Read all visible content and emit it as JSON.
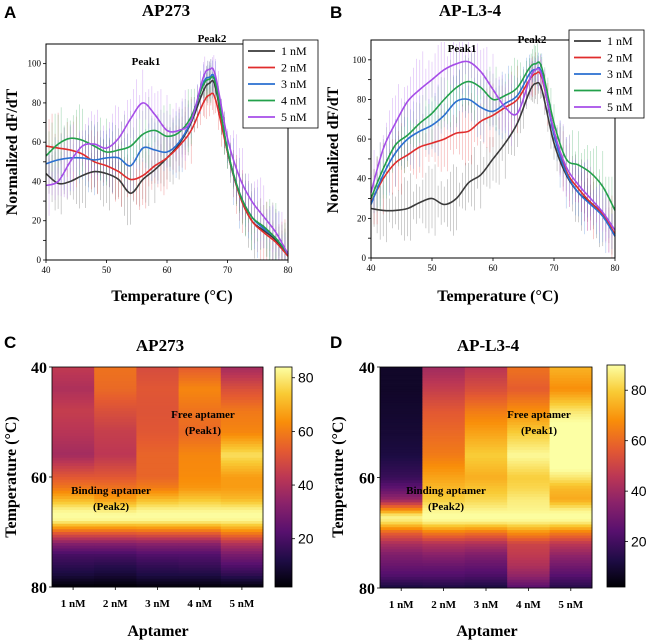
{
  "colors": {
    "1 nM": "#3a3a3a",
    "2 nM": "#e02c2c",
    "3 nM": "#2a6fd0",
    "4 nM": "#22a04a",
    "5 nM": "#a64de8"
  },
  "panels": {
    "A": {
      "letter": "A",
      "peak1": "Peak1",
      "peak2": "Peak2"
    },
    "B": {
      "letter": "B",
      "peak1": "Peak1",
      "peak2": "Peak2"
    },
    "C": {
      "letter": "C",
      "free_label": "Free aptamer",
      "free_sub": "(Peak1)",
      "binding_label": "Binding aptamer",
      "binding_sub": "(Peak2)"
    },
    "D": {
      "letter": "D",
      "free_label": "Free aptamer",
      "free_sub": "(Peak1)",
      "binding_label": "Binding aptamer",
      "binding_sub": "(Peak2)"
    }
  },
  "chart_data": [
    {
      "id": "A",
      "type": "line",
      "title": "AP273",
      "xlabel": "Temperature (°C)",
      "ylabel": "Normalized dF/dT",
      "xlim": [
        40,
        80
      ],
      "ylim": [
        0,
        110
      ],
      "xticks": [
        40,
        50,
        60,
        70,
        80
      ],
      "yticks": [
        0,
        10,
        20,
        30,
        40,
        50,
        60,
        70,
        80,
        90,
        100
      ],
      "error_bars": true,
      "legend_position": "top-right",
      "x": [
        40,
        42,
        44,
        46,
        48,
        50,
        52,
        54,
        56,
        58,
        60,
        62,
        64,
        66,
        67,
        68,
        70,
        72,
        74,
        76,
        78,
        80
      ],
      "series": [
        {
          "name": "1 nM",
          "values": [
            44,
            39,
            40,
            43,
            45,
            44,
            41,
            34,
            41,
            46,
            52,
            59,
            70,
            86,
            90,
            88,
            55,
            33,
            20,
            15,
            10,
            2
          ]
        },
        {
          "name": "2 nM",
          "values": [
            58,
            57,
            56,
            54,
            50,
            48,
            45,
            41,
            43,
            48,
            52,
            58,
            66,
            80,
            84,
            82,
            55,
            33,
            20,
            14,
            9,
            2
          ]
        },
        {
          "name": "3 nM",
          "values": [
            49,
            51,
            52,
            52,
            51,
            52,
            52,
            48,
            57,
            56,
            55,
            60,
            71,
            90,
            93,
            91,
            56,
            34,
            22,
            16,
            11,
            3
          ]
        },
        {
          "name": "4 nM",
          "values": [
            53,
            59,
            62,
            61,
            58,
            55,
            56,
            58,
            64,
            66,
            63,
            65,
            73,
            89,
            92,
            90,
            56,
            34,
            22,
            17,
            11,
            3
          ]
        },
        {
          "name": "5 nM",
          "values": [
            38,
            40,
            50,
            58,
            59,
            57,
            62,
            72,
            80,
            74,
            66,
            66,
            71,
            93,
            97,
            94,
            62,
            42,
            30,
            22,
            14,
            3
          ]
        }
      ]
    },
    {
      "id": "B",
      "type": "line",
      "title": "AP-L3-4",
      "xlabel": "Temperature (°C)",
      "ylabel": "Normalized dF/dT",
      "xlim": [
        40,
        80
      ],
      "ylim": [
        0,
        110
      ],
      "xticks": [
        40,
        50,
        60,
        70,
        80
      ],
      "yticks": [
        0,
        10,
        20,
        30,
        40,
        50,
        60,
        70,
        80,
        90,
        100
      ],
      "error_bars": true,
      "legend_position": "top-right",
      "x": [
        40,
        42,
        44,
        46,
        48,
        50,
        52,
        54,
        56,
        58,
        60,
        62,
        64,
        66,
        67,
        68,
        70,
        72,
        74,
        76,
        78,
        80
      ],
      "series": [
        {
          "name": "1 nM",
          "values": [
            25,
            24,
            24,
            25,
            28,
            30,
            27,
            30,
            38,
            42,
            50,
            58,
            68,
            84,
            88,
            85,
            58,
            42,
            33,
            28,
            22,
            11
          ]
        },
        {
          "name": "2 nM",
          "values": [
            28,
            40,
            48,
            52,
            56,
            58,
            60,
            63,
            64,
            69,
            72,
            76,
            80,
            90,
            93,
            91,
            64,
            44,
            35,
            28,
            22,
            12
          ]
        },
        {
          "name": "3 nM",
          "values": [
            27,
            42,
            53,
            60,
            64,
            67,
            72,
            79,
            80,
            76,
            74,
            78,
            82,
            93,
            95,
            93,
            62,
            43,
            33,
            27,
            21,
            11
          ]
        },
        {
          "name": "4 nM",
          "values": [
            30,
            45,
            57,
            62,
            68,
            73,
            80,
            86,
            89,
            86,
            80,
            82,
            86,
            96,
            98,
            96,
            68,
            50,
            47,
            43,
            36,
            24
          ]
        },
        {
          "name": "5 nM",
          "values": [
            33,
            55,
            68,
            79,
            85,
            90,
            95,
            98,
            99,
            94,
            85,
            76,
            73,
            90,
            95,
            92,
            64,
            46,
            37,
            30,
            23,
            14
          ]
        }
      ]
    },
    {
      "id": "C",
      "type": "heatmap",
      "title": "AP273",
      "xlabel": "Aptamer",
      "ylabel": "Temperature (°C)",
      "categories": [
        "1 nM",
        "2 nM",
        "3 nM",
        "4 nM",
        "5 nM"
      ],
      "ylim": [
        40,
        80
      ],
      "yticks": [
        40,
        60,
        80
      ],
      "colorbar_range": [
        2,
        84
      ],
      "colorbar_ticks": [
        20,
        40,
        60,
        80
      ],
      "temps": [
        40,
        44,
        48,
        52,
        56,
        60,
        62,
        64,
        66,
        67,
        68,
        70,
        72,
        74,
        76,
        78,
        80
      ],
      "values": [
        [
          44,
          40,
          45,
          42,
          38,
          52,
          59,
          70,
          82,
          84,
          82,
          55,
          33,
          20,
          15,
          10,
          2
        ],
        [
          58,
          56,
          50,
          45,
          43,
          52,
          58,
          66,
          80,
          84,
          82,
          55,
          33,
          20,
          14,
          9,
          2
        ],
        [
          49,
          52,
          51,
          52,
          55,
          55,
          60,
          71,
          82,
          84,
          82,
          56,
          34,
          22,
          16,
          11,
          3
        ],
        [
          53,
          62,
          58,
          56,
          62,
          63,
          65,
          73,
          82,
          84,
          82,
          56,
          34,
          22,
          17,
          11,
          3
        ],
        [
          38,
          50,
          59,
          62,
          78,
          66,
          66,
          71,
          82,
          84,
          82,
          62,
          42,
          30,
          22,
          14,
          3
        ]
      ]
    },
    {
      "id": "D",
      "type": "heatmap",
      "title": "AP-L3-4",
      "xlabel": "Aptamer",
      "ylabel": "Temperature (°C)",
      "categories": [
        "1 nM",
        "2 nM",
        "3 nM",
        "4 nM",
        "5 nM"
      ],
      "ylim": [
        40,
        80
      ],
      "yticks": [
        40,
        60,
        80
      ],
      "colorbar_range": [
        2,
        90
      ],
      "colorbar_ticks": [
        20,
        40,
        60,
        80
      ],
      "temps": [
        40,
        44,
        48,
        52,
        56,
        60,
        62,
        64,
        66,
        67,
        68,
        70,
        72,
        74,
        76,
        78,
        80
      ],
      "values": [
        [
          8,
          8,
          9,
          10,
          12,
          18,
          26,
          38,
          70,
          88,
          85,
          58,
          42,
          33,
          28,
          22,
          11
        ],
        [
          40,
          48,
          56,
          60,
          64,
          72,
          76,
          80,
          88,
          90,
          88,
          64,
          44,
          35,
          28,
          22,
          12
        ],
        [
          45,
          53,
          64,
          72,
          80,
          74,
          78,
          82,
          88,
          90,
          88,
          62,
          43,
          33,
          27,
          21,
          11
        ],
        [
          62,
          57,
          68,
          80,
          89,
          80,
          82,
          86,
          88,
          90,
          88,
          68,
          50,
          47,
          43,
          36,
          24
        ],
        [
          75,
          68,
          85,
          95,
          99,
          85,
          76,
          73,
          88,
          90,
          88,
          64,
          46,
          37,
          30,
          23,
          14
        ]
      ]
    }
  ]
}
